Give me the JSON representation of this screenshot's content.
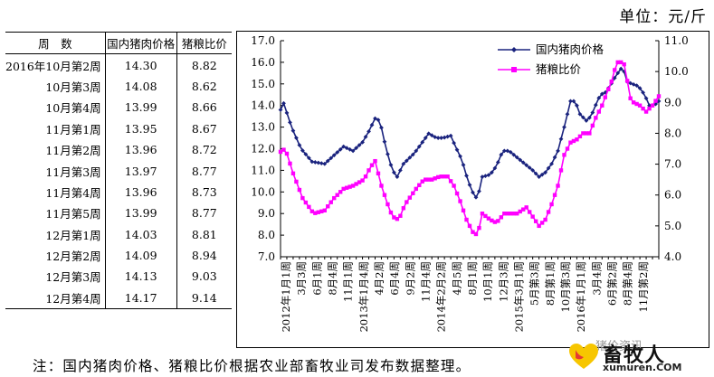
{
  "unit_label": "单位：元/斤",
  "table": {
    "headers": [
      "周　数",
      "国内猪肉价格",
      "猪粮比价"
    ],
    "rows": [
      [
        "2016年10月第2周",
        "14.30",
        "8.82"
      ],
      [
        "10月第3周",
        "14.08",
        "8.62"
      ],
      [
        "10月第4周",
        "13.99",
        "8.66"
      ],
      [
        "11月第1周",
        "13.95",
        "8.67"
      ],
      [
        "11月第2周",
        "13.96",
        "8.72"
      ],
      [
        "11月第3周",
        "13.97",
        "8.77"
      ],
      [
        "11月第4周",
        "13.96",
        "8.73"
      ],
      [
        "11月第5周",
        "13.99",
        "8.77"
      ],
      [
        "12月第1周",
        "14.03",
        "8.81"
      ],
      [
        "12月第2周",
        "14.09",
        "8.94"
      ],
      [
        "12月第3周",
        "14.13",
        "9.03"
      ],
      [
        "12月第4周",
        "14.17",
        "9.14"
      ]
    ]
  },
  "note": "注：国内猪肉价格、猪粮比价根据农业部畜牧业司发布数据整理。",
  "watermark": {
    "account": "猪价资讯",
    "logo_text": "畜牧人",
    "logo_url": "xumuren.COM"
  },
  "colors": {
    "pork": "#1a237e",
    "ratio": "#ff00ff"
  },
  "chart_data": {
    "type": "line",
    "title": "",
    "xlabel": "",
    "ylabel_left": "",
    "ylabel_right": "",
    "y_left_lim": [
      7.0,
      17.0
    ],
    "y_left_ticks": [
      "7.0",
      "8.0",
      "9.0",
      "10.0",
      "11.0",
      "12.0",
      "13.0",
      "14.0",
      "15.0",
      "16.0",
      "17.0"
    ],
    "y_right_lim": [
      4.0,
      11.0
    ],
    "y_right_ticks": [
      "4.0",
      "5.0",
      "6.0",
      "7.0",
      "8.0",
      "9.0",
      "10.0",
      "11.0"
    ],
    "x_tick_labels": [
      "2012年1月1周",
      "3月3周",
      "6月1周",
      "8月4周",
      "11月1周",
      "2013年1月4周",
      "4月2周",
      "6月4周",
      "9月2周",
      "11月4周",
      "2014年2月2周",
      "4月5周",
      "8月1周",
      "10月1周",
      "12月3周",
      "2015年3月1周",
      "5月第3周",
      "8月第1周",
      "10月第3周",
      "2016年1月1周",
      "3月4周",
      "6月第2周",
      "8月第4周",
      "11月第2周"
    ],
    "legend": {
      "position": "top-center",
      "entries": [
        "国内猪肉价格",
        "猪粮比价"
      ]
    },
    "grid": false,
    "series": [
      {
        "name": "国内猪肉价格",
        "axis": "left",
        "marker": "diamond",
        "anchors": [
          [
            0,
            13.8
          ],
          [
            2,
            14.1
          ],
          [
            7,
            13.0
          ],
          [
            13,
            12.0
          ],
          [
            20,
            11.4
          ],
          [
            28,
            11.3
          ],
          [
            34,
            11.7
          ],
          [
            40,
            12.1
          ],
          [
            46,
            11.9
          ],
          [
            52,
            12.3
          ],
          [
            56,
            12.8
          ],
          [
            60,
            13.4
          ],
          [
            63,
            13.3
          ],
          [
            67,
            12.0
          ],
          [
            71,
            11.0
          ],
          [
            74,
            10.7
          ],
          [
            78,
            11.3
          ],
          [
            85,
            11.8
          ],
          [
            90,
            12.3
          ],
          [
            94,
            12.7
          ],
          [
            99,
            12.5
          ],
          [
            103,
            12.5
          ],
          [
            108,
            12.6
          ],
          [
            111,
            12.1
          ],
          [
            115,
            11.5
          ],
          [
            119,
            10.5
          ],
          [
            123,
            9.8
          ],
          [
            125,
            9.7
          ],
          [
            128,
            10.7
          ],
          [
            133,
            10.8
          ],
          [
            137,
            11.2
          ],
          [
            141,
            11.9
          ],
          [
            145,
            11.9
          ],
          [
            150,
            11.6
          ],
          [
            155,
            11.3
          ],
          [
            160,
            11.0
          ],
          [
            164,
            10.7
          ],
          [
            168,
            10.9
          ],
          [
            172,
            11.3
          ],
          [
            176,
            11.9
          ],
          [
            180,
            13.0
          ],
          [
            184,
            14.2
          ],
          [
            187,
            14.2
          ],
          [
            190,
            13.6
          ],
          [
            194,
            13.3
          ],
          [
            197,
            13.5
          ],
          [
            201,
            14.2
          ],
          [
            203,
            14.5
          ],
          [
            206,
            14.6
          ],
          [
            209,
            14.9
          ],
          [
            213,
            15.4
          ],
          [
            217,
            15.8
          ],
          [
            220,
            15.1
          ],
          [
            223,
            15.0
          ],
          [
            227,
            14.9
          ],
          [
            231,
            14.5
          ],
          [
            234,
            14.0
          ],
          [
            237,
            14.0
          ],
          [
            240,
            14.2
          ]
        ]
      },
      {
        "name": "猪粮比价",
        "axis": "right",
        "marker": "square",
        "anchors": [
          [
            0,
            7.4
          ],
          [
            3,
            7.5
          ],
          [
            8,
            6.7
          ],
          [
            14,
            5.9
          ],
          [
            21,
            5.4
          ],
          [
            28,
            5.5
          ],
          [
            34,
            5.9
          ],
          [
            40,
            6.2
          ],
          [
            46,
            6.3
          ],
          [
            53,
            6.5
          ],
          [
            57,
            6.9
          ],
          [
            60,
            7.1
          ],
          [
            64,
            6.3
          ],
          [
            68,
            5.7
          ],
          [
            71,
            5.3
          ],
          [
            75,
            5.2
          ],
          [
            79,
            5.7
          ],
          [
            86,
            6.2
          ],
          [
            91,
            6.5
          ],
          [
            96,
            6.5
          ],
          [
            101,
            6.6
          ],
          [
            106,
            6.6
          ],
          [
            110,
            6.3
          ],
          [
            114,
            5.8
          ],
          [
            118,
            5.2
          ],
          [
            122,
            4.8
          ],
          [
            125,
            4.7
          ],
          [
            128,
            5.4
          ],
          [
            133,
            5.2
          ],
          [
            137,
            5.1
          ],
          [
            142,
            5.4
          ],
          [
            146,
            5.4
          ],
          [
            150,
            5.4
          ],
          [
            156,
            5.6
          ],
          [
            160,
            5.3
          ],
          [
            164,
            5.0
          ],
          [
            168,
            5.2
          ],
          [
            172,
            5.7
          ],
          [
            176,
            6.3
          ],
          [
            180,
            7.3
          ],
          [
            184,
            7.7
          ],
          [
            188,
            7.8
          ],
          [
            192,
            8.0
          ],
          [
            196,
            8.0
          ],
          [
            200,
            8.5
          ],
          [
            204,
            8.9
          ],
          [
            207,
            9.3
          ],
          [
            211,
            9.8
          ],
          [
            213,
            10.3
          ],
          [
            216,
            10.3
          ],
          [
            219,
            10.2
          ],
          [
            221,
            9.2
          ],
          [
            224,
            9.0
          ],
          [
            228,
            8.9
          ],
          [
            232,
            8.7
          ],
          [
            236,
            8.9
          ],
          [
            240,
            9.2
          ]
        ]
      }
    ]
  }
}
